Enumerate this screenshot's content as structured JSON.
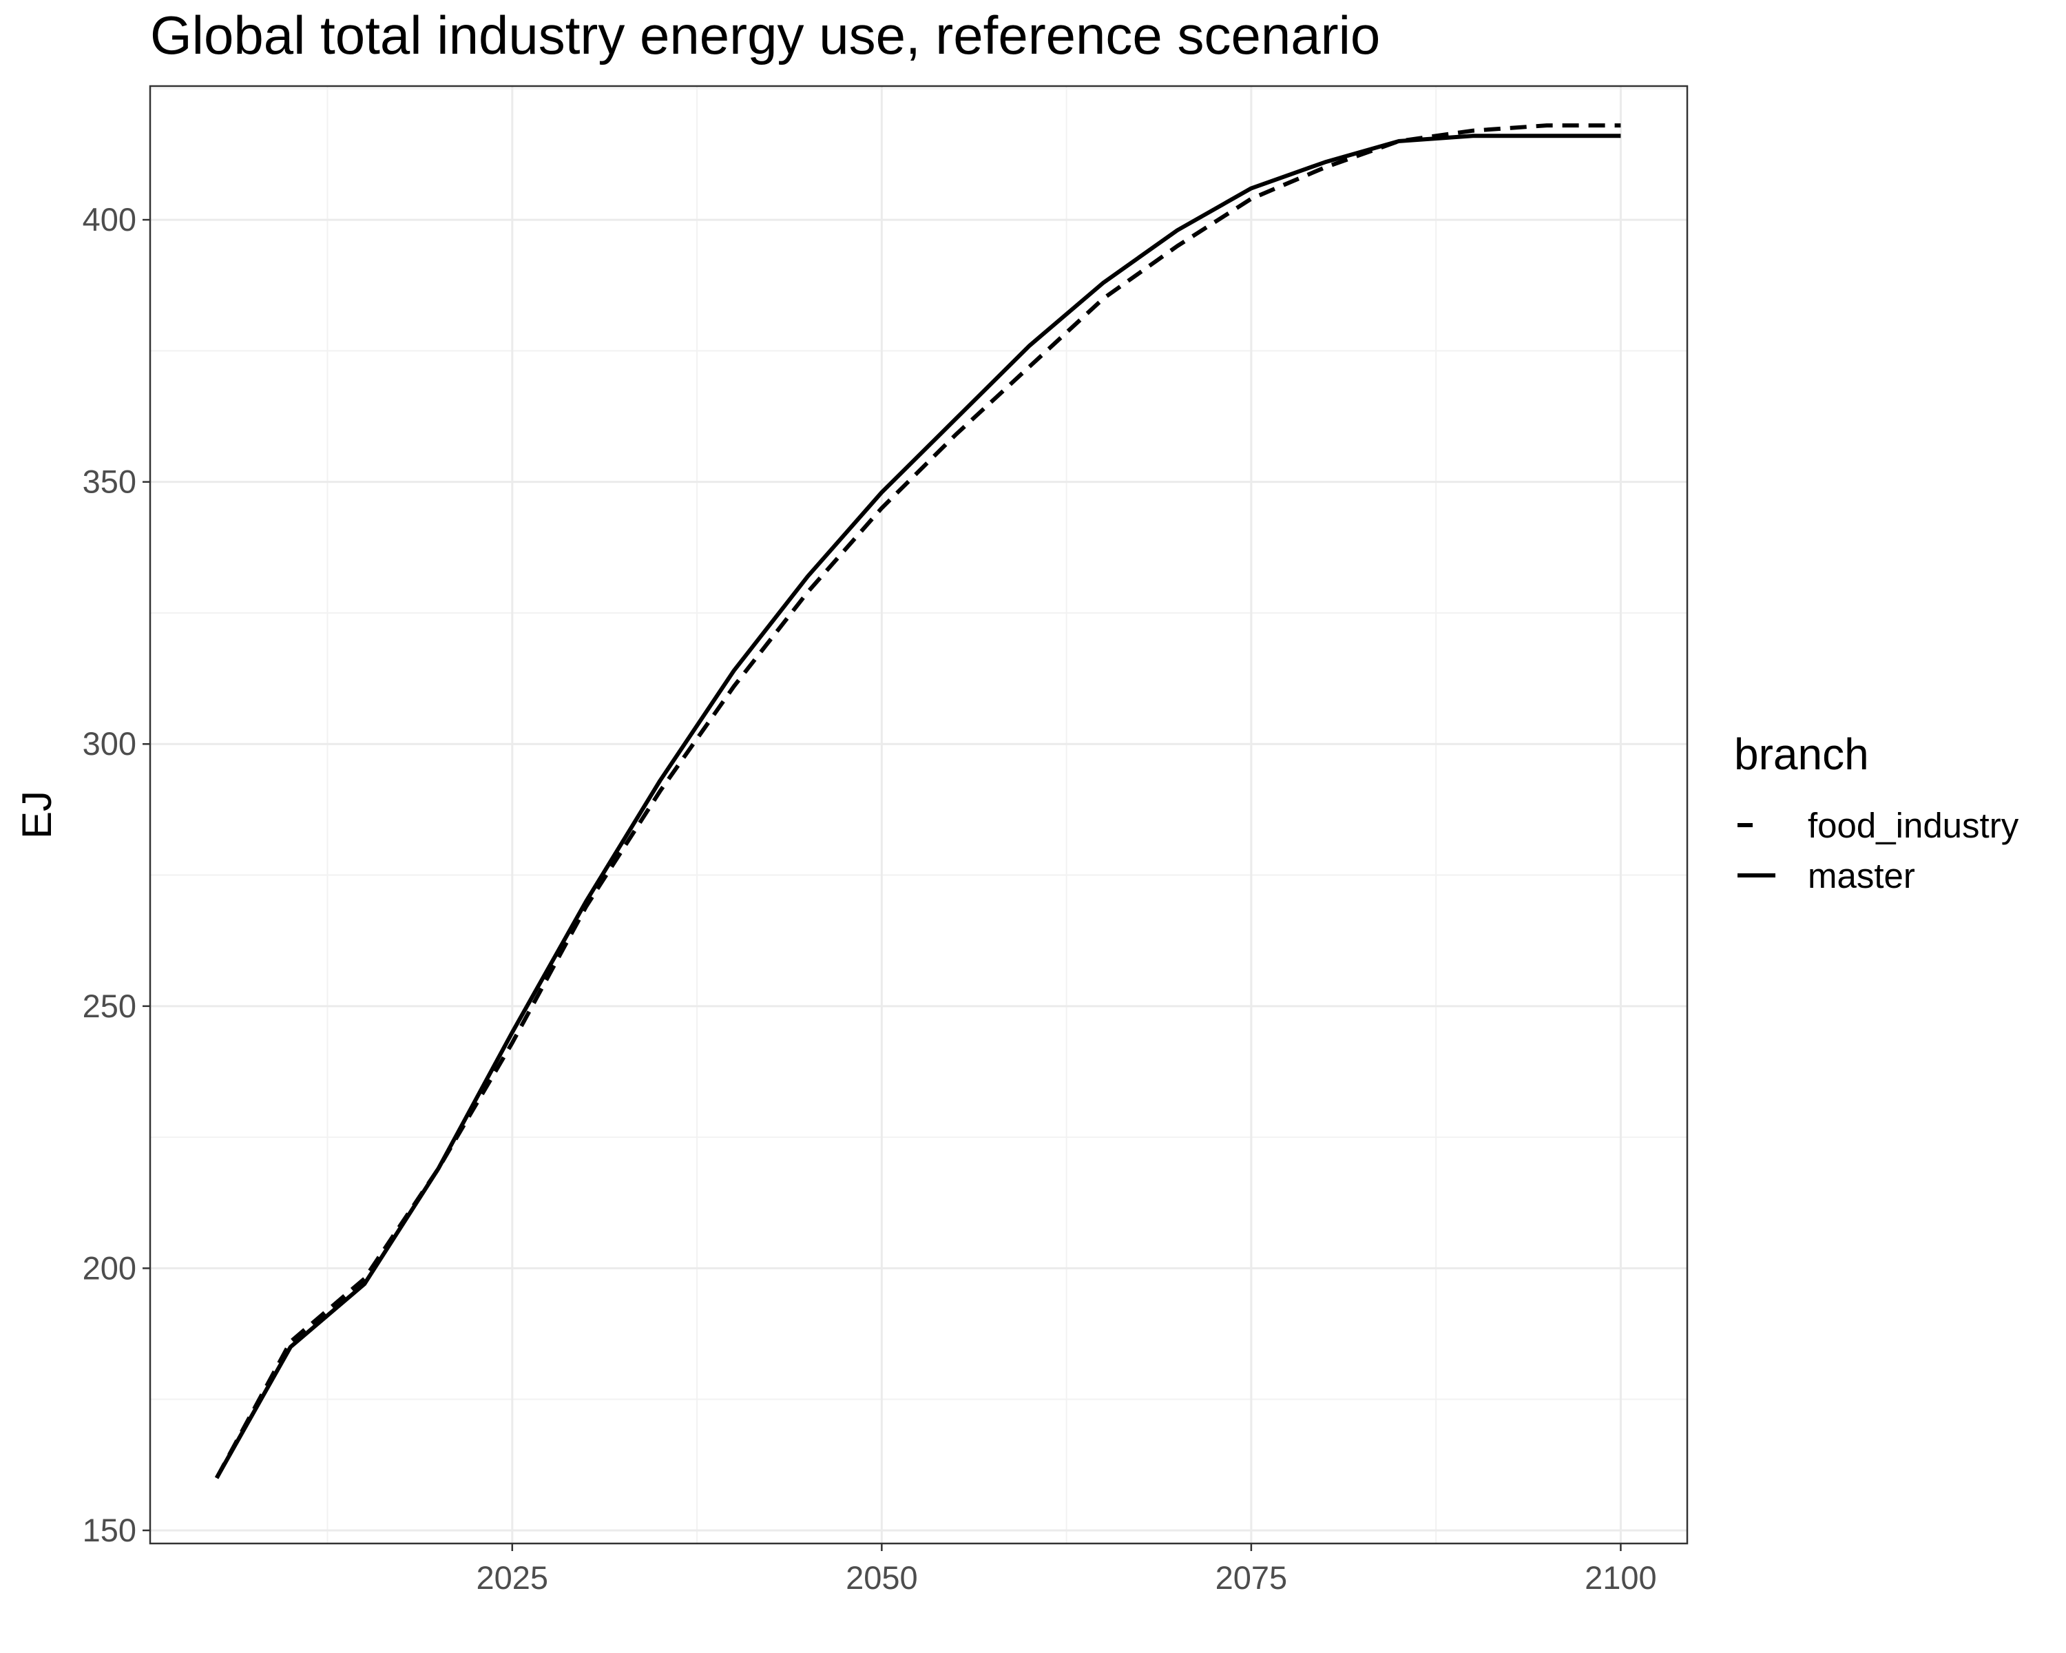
{
  "chart_data": {
    "type": "line",
    "title": "Global total industry energy use, reference scenario",
    "xlabel": "",
    "ylabel": "EJ",
    "xlim": [
      2000.5,
      2104.5
    ],
    "ylim": [
      147.5,
      425.5
    ],
    "x_ticks": [
      2025,
      2050,
      2075,
      2100
    ],
    "y_ticks": [
      150,
      200,
      250,
      300,
      350,
      400
    ],
    "grid": true,
    "legend": {
      "title": "branch",
      "position": "right"
    },
    "x": [
      2005,
      2010,
      2015,
      2020,
      2025,
      2030,
      2035,
      2040,
      2045,
      2050,
      2055,
      2060,
      2065,
      2070,
      2075,
      2080,
      2085,
      2090,
      2095,
      2100
    ],
    "series": [
      {
        "name": "food_industry",
        "line_style": "dashed",
        "color": "#000000",
        "values": [
          160,
          186,
          198,
          219,
          243,
          269,
          291,
          311,
          329,
          345,
          359,
          372,
          385,
          395,
          404,
          410,
          415,
          417,
          418,
          418
        ]
      },
      {
        "name": "master",
        "line_style": "solid",
        "color": "#000000",
        "values": [
          160,
          185,
          197,
          219,
          245,
          270,
          293,
          314,
          332,
          348,
          362,
          376,
          388,
          398,
          406,
          411,
          415,
          416,
          416,
          416
        ]
      }
    ]
  }
}
